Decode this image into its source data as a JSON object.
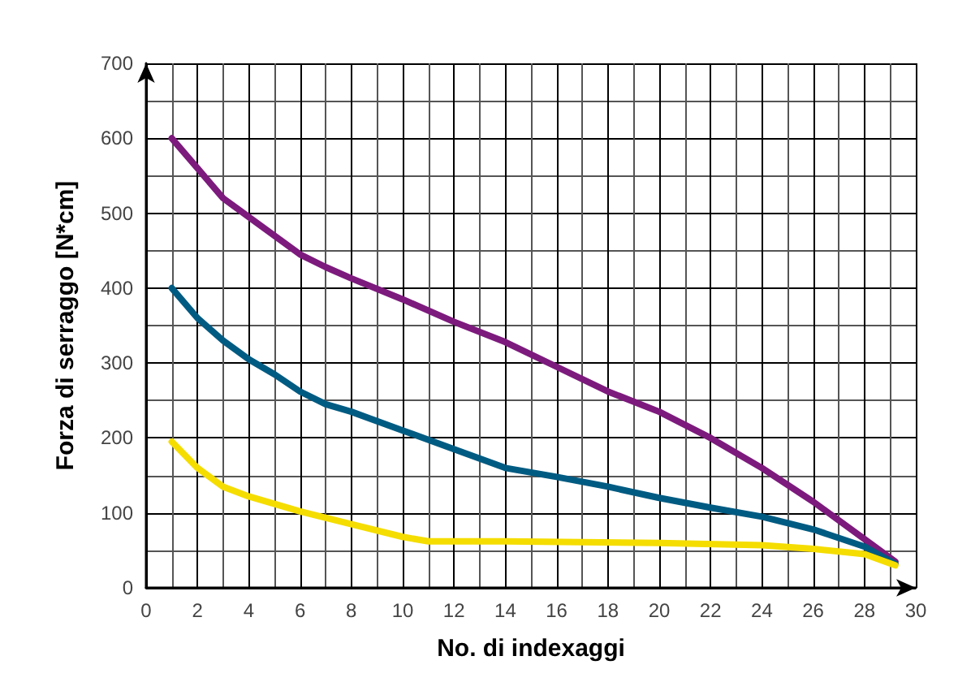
{
  "chart_data": {
    "type": "line",
    "xlabel": "No. di indexaggi",
    "ylabel": "Forza di serraggo [N*cm]",
    "xlim": [
      0,
      30
    ],
    "ylim": [
      0,
      700
    ],
    "xticks": [
      0,
      2,
      4,
      6,
      8,
      10,
      12,
      14,
      16,
      18,
      20,
      22,
      24,
      26,
      28,
      30
    ],
    "yticks": [
      0,
      100,
      200,
      300,
      400,
      500,
      600,
      700
    ],
    "grid": true,
    "marker": "none",
    "line_style": "solid",
    "series": [
      {
        "color": "#7d1a7d",
        "x": [
          1,
          2,
          3,
          4,
          5,
          6,
          7,
          8,
          10,
          12,
          14,
          16,
          18,
          20,
          22,
          24,
          26,
          28,
          29.2
        ],
        "values": [
          600,
          560,
          520,
          495,
          470,
          445,
          428,
          413,
          385,
          355,
          328,
          295,
          262,
          235,
          200,
          160,
          115,
          65,
          35
        ]
      },
      {
        "color": "#005b82",
        "x": [
          1,
          2,
          3,
          4,
          5,
          6,
          7,
          8,
          10,
          12,
          14,
          16,
          18,
          20,
          22,
          24,
          26,
          28,
          29.2
        ],
        "values": [
          400,
          360,
          330,
          305,
          285,
          262,
          245,
          235,
          210,
          185,
          160,
          148,
          135,
          120,
          107,
          95,
          78,
          55,
          32
        ]
      },
      {
        "color": "#f5dd00",
        "x": [
          1,
          2,
          3,
          4,
          6,
          8,
          10,
          11,
          14,
          20,
          24,
          26,
          28,
          29.2
        ],
        "values": [
          195,
          160,
          135,
          122,
          102,
          85,
          68,
          62,
          62,
          60,
          57,
          52,
          45,
          30
        ]
      }
    ]
  }
}
